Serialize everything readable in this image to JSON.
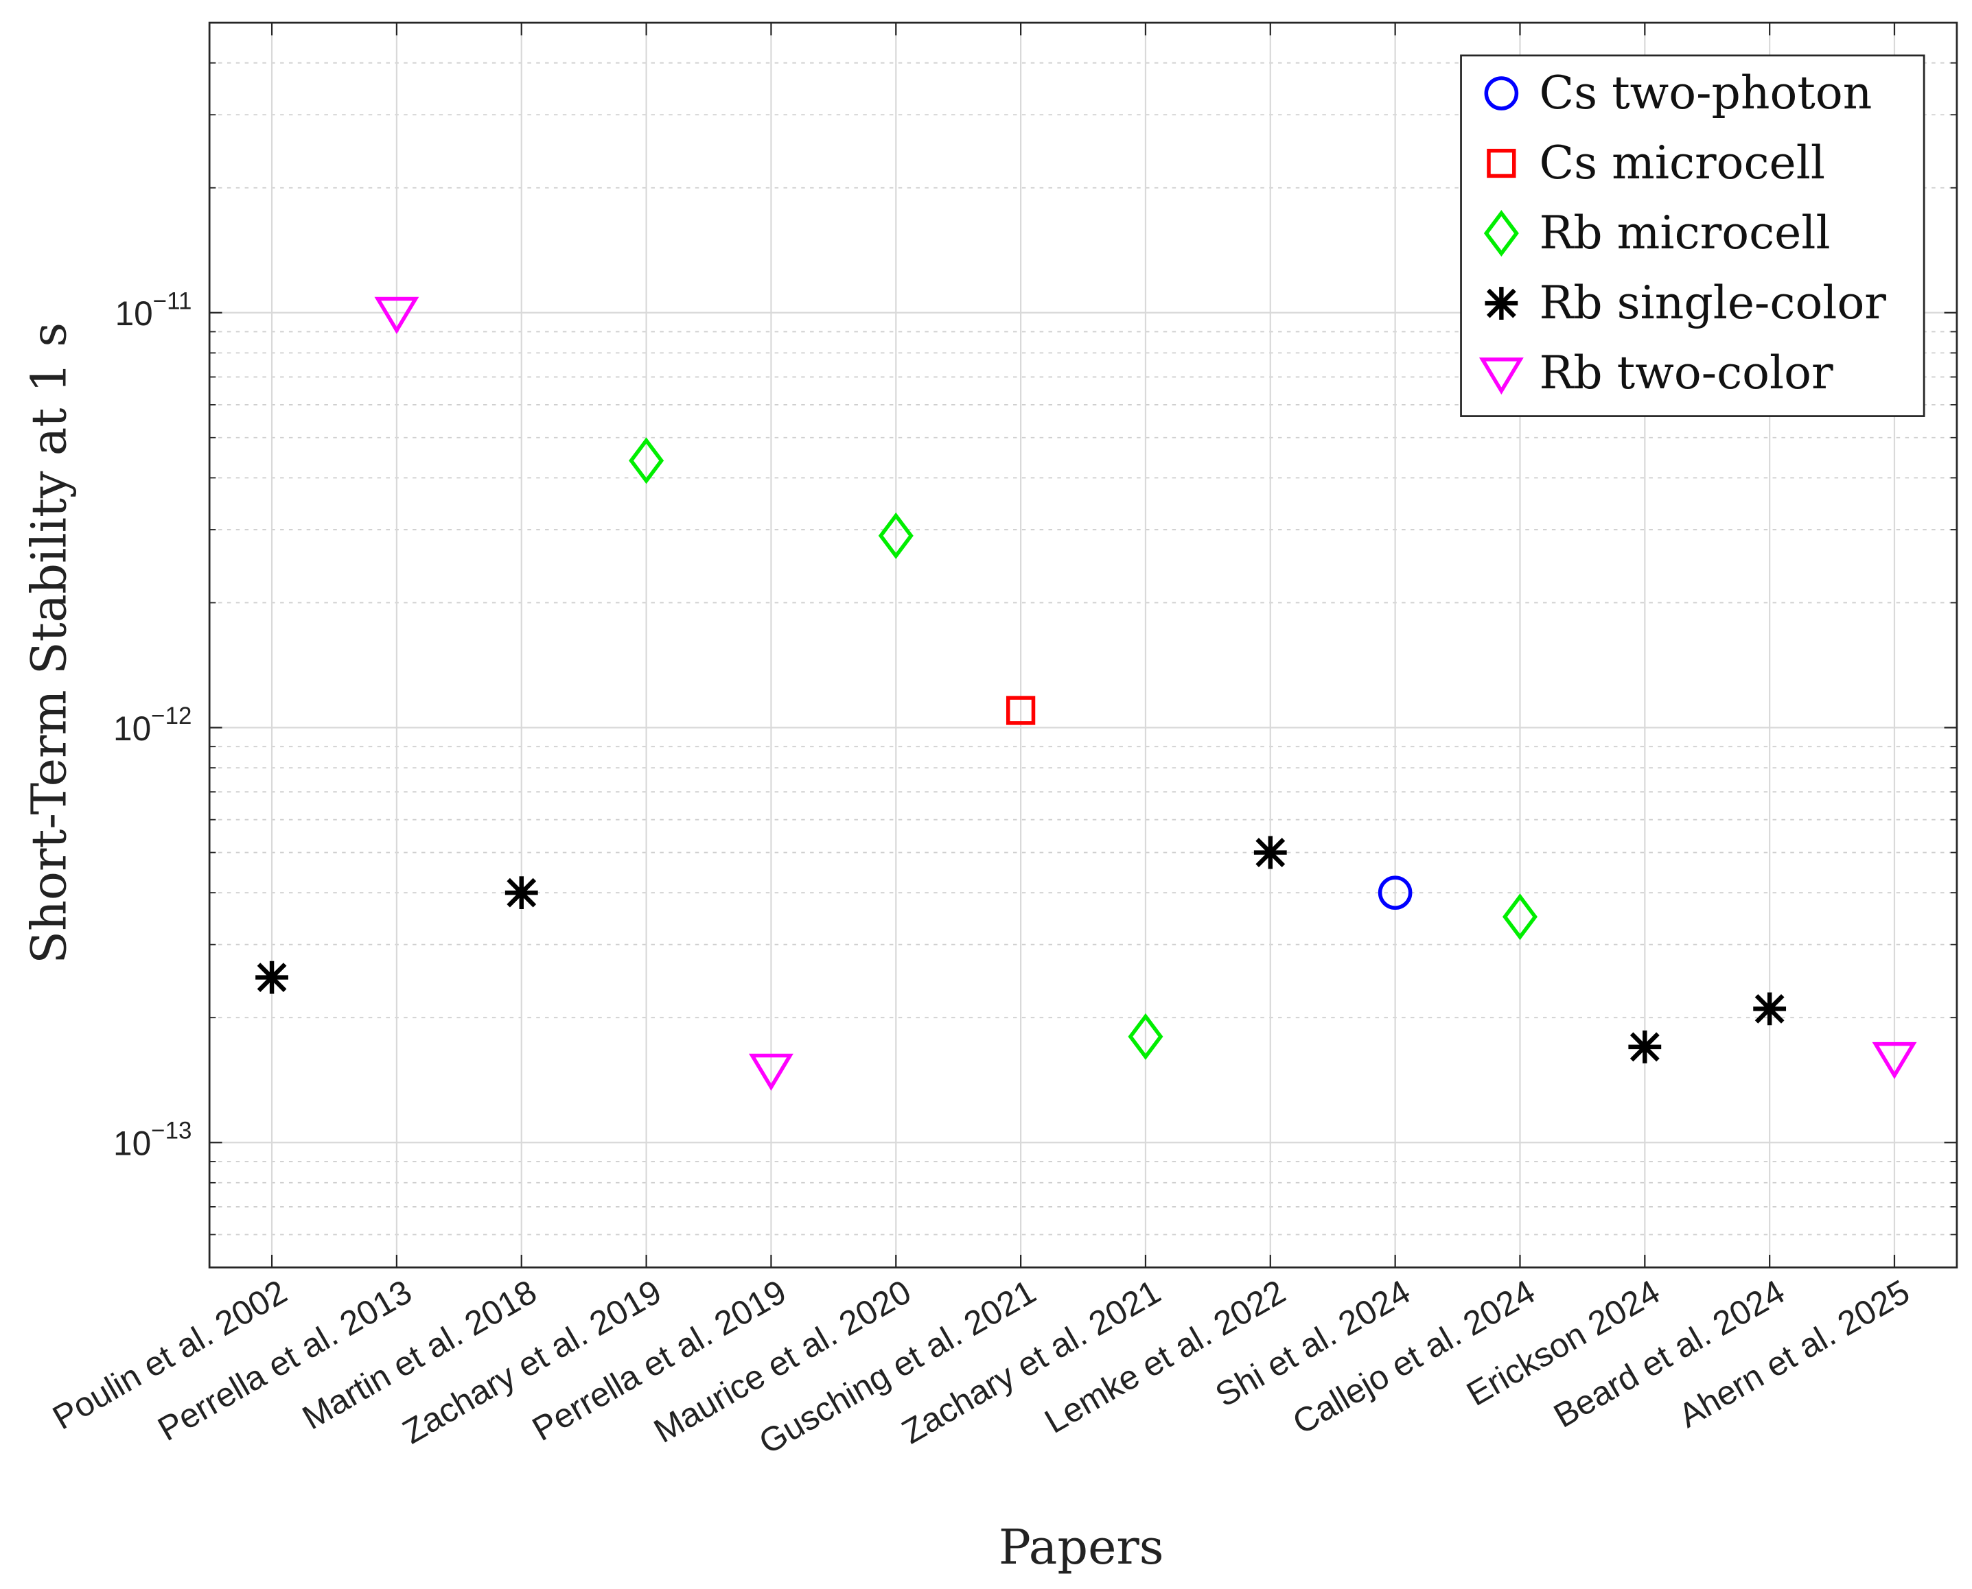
{
  "chart_data": {
    "type": "scatter",
    "title": "",
    "xlabel": "Papers",
    "ylabel": "Short-Term Stability at 1 s",
    "yscale": "log",
    "ylim": [
      5e-14,
      5e-11
    ],
    "xlim": [
      0.5,
      14.5
    ],
    "grid": true,
    "legend_position": "top-right",
    "y_tick_labels": [
      {
        "value": 1e-11,
        "base": "10",
        "exp": "−11"
      },
      {
        "value": 1e-12,
        "base": "10",
        "exp": "−12"
      },
      {
        "value": 1e-13,
        "base": "10",
        "exp": "−13"
      }
    ],
    "categories": [
      "Poulin et al. 2002",
      "Perrella et al. 2013",
      "Martin et al. 2018",
      "Zachary et al. 2019",
      "Perrella et al. 2019",
      "Maurice et al. 2020",
      "Gusching et al. 2021",
      "Zachary et al. 2021",
      "Lemke et al. 2022",
      "Shi et al. 2024",
      "Callejo et al. 2024",
      "Erickson 2024",
      "Beard et al. 2024",
      "Ahern et al. 2025"
    ],
    "series": [
      {
        "name": "Cs two-photon",
        "marker": "circle",
        "color": "#0000ff",
        "points": [
          {
            "x": 10,
            "y": 4e-13
          }
        ]
      },
      {
        "name": "Cs microcell",
        "marker": "square",
        "color": "#ff0000",
        "points": [
          {
            "x": 7,
            "y": 1.1e-12
          }
        ]
      },
      {
        "name": "Rb microcell",
        "marker": "diamond",
        "color": "#00ee00",
        "points": [
          {
            "x": 4,
            "y": 4.4e-12
          },
          {
            "x": 6,
            "y": 2.9e-12
          },
          {
            "x": 8,
            "y": 1.8e-13
          },
          {
            "x": 11,
            "y": 3.5e-13
          }
        ]
      },
      {
        "name": "Rb single-color",
        "marker": "asterisk",
        "color": "#000000",
        "points": [
          {
            "x": 1,
            "y": 2.5e-13
          },
          {
            "x": 3,
            "y": 4e-13
          },
          {
            "x": 9,
            "y": 5e-13
          },
          {
            "x": 12,
            "y": 1.7e-13
          },
          {
            "x": 13,
            "y": 2.1e-13
          }
        ]
      },
      {
        "name": "Rb two-color",
        "marker": "triangle-down",
        "color": "#ff00ff",
        "points": [
          {
            "x": 2,
            "y": 1e-11
          },
          {
            "x": 5,
            "y": 1.5e-13
          },
          {
            "x": 14,
            "y": 1.6e-13
          }
        ]
      }
    ]
  }
}
